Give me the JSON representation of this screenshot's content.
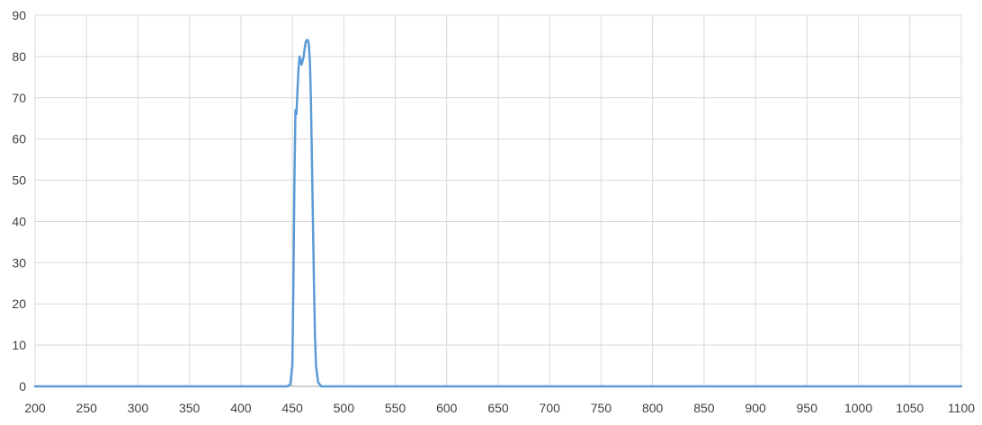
{
  "chart_data": {
    "type": "line",
    "title": "",
    "xlabel": "",
    "ylabel": "",
    "xlim": [
      200,
      1100
    ],
    "ylim": [
      0,
      90
    ],
    "x_ticks": [
      200,
      250,
      300,
      350,
      400,
      450,
      500,
      550,
      600,
      650,
      700,
      750,
      800,
      850,
      900,
      950,
      1000,
      1050,
      1100
    ],
    "y_ticks": [
      0,
      10,
      20,
      30,
      40,
      50,
      60,
      70,
      80,
      90
    ],
    "grid": true,
    "legend": "none",
    "series": [
      {
        "color": "#5b9bd5",
        "points": [
          [
            200,
            0
          ],
          [
            445,
            0
          ],
          [
            448,
            0.5
          ],
          [
            450,
            5
          ],
          [
            451,
            25
          ],
          [
            452,
            50
          ],
          [
            453,
            67
          ],
          [
            454,
            66
          ],
          [
            455,
            72
          ],
          [
            456,
            77
          ],
          [
            457,
            80
          ],
          [
            458,
            79
          ],
          [
            459,
            78
          ],
          [
            460,
            79
          ],
          [
            461,
            80
          ],
          [
            462,
            82
          ],
          [
            463,
            83.5
          ],
          [
            464,
            84
          ],
          [
            465,
            84
          ],
          [
            466,
            83
          ],
          [
            467,
            79
          ],
          [
            468,
            70
          ],
          [
            469,
            55
          ],
          [
            470,
            40
          ],
          [
            471,
            25
          ],
          [
            472,
            12
          ],
          [
            473,
            5
          ],
          [
            475,
            1
          ],
          [
            478,
            0
          ],
          [
            1100,
            0
          ]
        ]
      }
    ]
  }
}
